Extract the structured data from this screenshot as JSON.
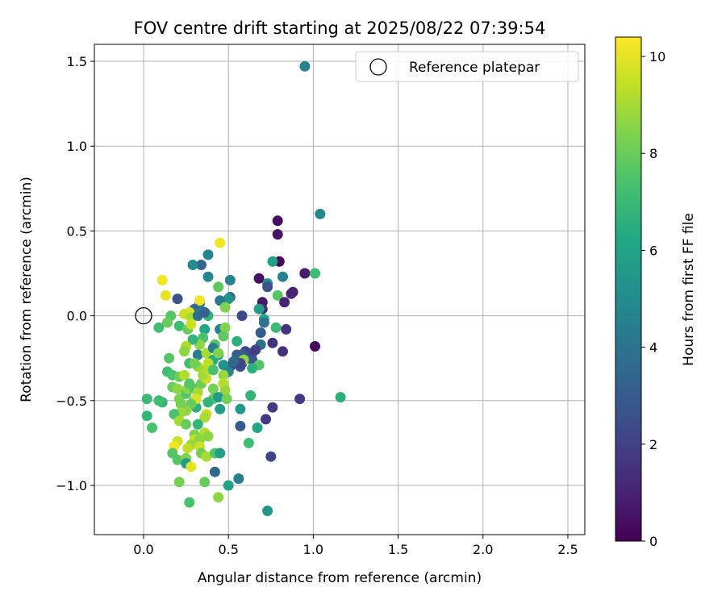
{
  "chart_data": {
    "type": "scatter",
    "title": "FOV centre drift starting at 2025/08/22 07:39:54",
    "xlabel": "Angular distance from reference (arcmin)",
    "ylabel": "Rotation from reference (arcmin)",
    "xlim": [
      -0.29,
      2.6
    ],
    "ylim": [
      -1.29,
      1.6
    ],
    "xticks": [
      0.0,
      0.5,
      1.0,
      1.5,
      2.0,
      2.5
    ],
    "xtick_labels": [
      "0.0",
      "0.5",
      "1.0",
      "1.5",
      "2.0",
      "2.5"
    ],
    "yticks": [
      -1.0,
      -0.5,
      0.0,
      0.5,
      1.0,
      1.5
    ],
    "ytick_labels": [
      "−1.0",
      "−0.5",
      "0.0",
      "0.5",
      "1.0",
      "1.5"
    ],
    "grid": true,
    "legend": {
      "position": "top-right",
      "entries": [
        "Reference platepar"
      ]
    },
    "reference_point": {
      "x": 0.0,
      "y": 0.0
    },
    "colorbar": {
      "label": "Hours from first FF file",
      "colormap": "viridis",
      "range": [
        0,
        10.4
      ],
      "ticks": [
        0,
        2,
        4,
        6,
        8,
        10
      ],
      "tick_labels": [
        "0",
        "2",
        "4",
        "6",
        "8",
        "10"
      ]
    },
    "points": [
      [
        0.95,
        1.47,
        4.6
      ],
      [
        1.04,
        0.6,
        4.8
      ],
      [
        0.79,
        0.56,
        0.4
      ],
      [
        0.79,
        0.48,
        0.5
      ],
      [
        0.8,
        0.32,
        0.2
      ],
      [
        0.76,
        0.32,
        6.0
      ],
      [
        0.95,
        0.25,
        0.4
      ],
      [
        0.95,
        0.25,
        0.8
      ],
      [
        0.88,
        0.14,
        0.9
      ],
      [
        0.87,
        0.13,
        1.0
      ],
      [
        1.01,
        0.25,
        7.0
      ],
      [
        0.82,
        0.23,
        4.6
      ],
      [
        0.68,
        0.22,
        0.4
      ],
      [
        0.73,
        0.19,
        5.0
      ],
      [
        0.73,
        0.17,
        2.6
      ],
      [
        0.79,
        0.12,
        7.6
      ],
      [
        0.7,
        0.08,
        0.7
      ],
      [
        0.83,
        0.08,
        1.0
      ],
      [
        0.7,
        0.04,
        1.4
      ],
      [
        0.68,
        0.04,
        5.8
      ],
      [
        0.58,
        0.0,
        2.4
      ],
      [
        0.71,
        -0.02,
        6.2
      ],
      [
        0.71,
        -0.04,
        4.0
      ],
      [
        0.78,
        -0.07,
        7.0
      ],
      [
        0.84,
        -0.08,
        1.6
      ],
      [
        0.69,
        -0.1,
        3.0
      ],
      [
        0.76,
        -0.16,
        1.6
      ],
      [
        1.01,
        -0.18,
        0.2
      ],
      [
        0.82,
        -0.21,
        1.4
      ],
      [
        0.69,
        -0.17,
        4.0
      ],
      [
        0.66,
        -0.2,
        2.0
      ],
      [
        0.64,
        -0.22,
        1.9
      ],
      [
        0.6,
        -0.21,
        2.2
      ],
      [
        0.58,
        -0.23,
        3.0
      ],
      [
        0.64,
        -0.26,
        2.8
      ],
      [
        0.58,
        -0.28,
        2.4
      ],
      [
        0.57,
        -0.3,
        2.6
      ],
      [
        0.53,
        -0.28,
        2.0
      ],
      [
        0.55,
        -0.23,
        3.1
      ],
      [
        0.51,
        -0.3,
        2.6
      ],
      [
        0.68,
        -0.29,
        7.6
      ],
      [
        0.64,
        -0.31,
        6.6
      ],
      [
        0.59,
        -0.26,
        8.6
      ],
      [
        0.57,
        -0.28,
        2.2
      ],
      [
        0.92,
        -0.49,
        1.8
      ],
      [
        1.16,
        -0.48,
        6.6
      ],
      [
        0.63,
        -0.47,
        6.8
      ],
      [
        0.76,
        -0.54,
        1.8
      ],
      [
        0.72,
        -0.61,
        1.8
      ],
      [
        0.67,
        -0.66,
        6.2
      ],
      [
        0.57,
        -0.55,
        5.6
      ],
      [
        0.57,
        -0.65,
        3.0
      ],
      [
        0.62,
        -0.75,
        7.2
      ],
      [
        0.75,
        -0.83,
        2.2
      ],
      [
        0.56,
        -0.96,
        4.4
      ],
      [
        0.5,
        -1.0,
        6.0
      ],
      [
        0.73,
        -1.15,
        5.4
      ],
      [
        0.51,
        0.21,
        4.6
      ],
      [
        0.51,
        0.11,
        3.4
      ],
      [
        0.5,
        0.1,
        5.4
      ],
      [
        0.45,
        0.43,
        10.2
      ],
      [
        0.38,
        0.36,
        4.8
      ],
      [
        0.34,
        0.3,
        3.4
      ],
      [
        0.29,
        0.3,
        5.0
      ],
      [
        0.38,
        0.23,
        4.8
      ],
      [
        0.44,
        0.17,
        7.8
      ],
      [
        0.45,
        0.09,
        4.2
      ],
      [
        0.48,
        0.05,
        8.4
      ],
      [
        0.33,
        0.07,
        4.0
      ],
      [
        0.33,
        0.09,
        10.2
      ],
      [
        0.3,
        0.04,
        3.4
      ],
      [
        0.32,
        0.01,
        4.4
      ],
      [
        0.27,
        0.02,
        9.8
      ],
      [
        0.24,
        0.01,
        9.6
      ],
      [
        0.28,
        -0.01,
        9.0
      ],
      [
        0.38,
        0.0,
        6.8
      ],
      [
        0.2,
        0.1,
        2.6
      ],
      [
        0.11,
        0.21,
        10.2
      ],
      [
        0.13,
        0.12,
        10.0
      ],
      [
        0.16,
        0.0,
        7.6
      ],
      [
        0.14,
        -0.04,
        8.0
      ],
      [
        0.09,
        -0.07,
        7.2
      ],
      [
        0.21,
        -0.06,
        7.2
      ],
      [
        0.26,
        -0.08,
        8.0
      ],
      [
        0.28,
        -0.05,
        9.6
      ],
      [
        0.36,
        -0.08,
        6.2
      ],
      [
        0.45,
        -0.08,
        4.4
      ],
      [
        0.48,
        -0.07,
        8.4
      ],
      [
        0.47,
        -0.12,
        7.8
      ],
      [
        0.42,
        -0.17,
        7.6
      ],
      [
        0.35,
        -0.13,
        7.4
      ],
      [
        0.33,
        -0.17,
        8.6
      ],
      [
        0.29,
        -0.14,
        6.8
      ],
      [
        0.25,
        -0.18,
        9.2
      ],
      [
        0.24,
        -0.21,
        8.6
      ],
      [
        0.27,
        -0.28,
        7.2
      ],
      [
        0.32,
        -0.23,
        4.4
      ],
      [
        0.37,
        -0.22,
        9.0
      ],
      [
        0.41,
        -0.19,
        4.4
      ],
      [
        0.44,
        -0.23,
        5.0
      ],
      [
        0.41,
        -0.26,
        6.4
      ],
      [
        0.47,
        -0.29,
        5.4
      ],
      [
        0.5,
        -0.33,
        4.6
      ],
      [
        0.53,
        -0.27,
        3.4
      ],
      [
        0.55,
        -0.15,
        6.6
      ],
      [
        0.15,
        -0.25,
        7.6
      ],
      [
        0.14,
        -0.33,
        7.2
      ],
      [
        0.17,
        -0.35,
        7.4
      ],
      [
        0.21,
        -0.36,
        8.0
      ],
      [
        0.24,
        -0.35,
        9.2
      ],
      [
        0.17,
        -0.42,
        8.0
      ],
      [
        0.2,
        -0.43,
        8.6
      ],
      [
        0.21,
        -0.49,
        8.4
      ],
      [
        0.25,
        -0.46,
        7.6
      ],
      [
        0.26,
        -0.43,
        8.6
      ],
      [
        0.27,
        -0.4,
        7.6
      ],
      [
        0.3,
        -0.43,
        7.6
      ],
      [
        0.32,
        -0.45,
        9.0
      ],
      [
        0.34,
        -0.4,
        8.2
      ],
      [
        0.37,
        -0.37,
        9.6
      ],
      [
        0.35,
        -0.35,
        9.0
      ],
      [
        0.37,
        -0.32,
        9.2
      ],
      [
        0.38,
        -0.28,
        9.4
      ],
      [
        0.32,
        -0.3,
        8.8
      ],
      [
        0.3,
        -0.28,
        8.2
      ],
      [
        0.47,
        -0.35,
        8.8
      ],
      [
        0.47,
        -0.4,
        9.2
      ],
      [
        0.48,
        -0.44,
        8.8
      ],
      [
        0.41,
        -0.43,
        8.2
      ],
      [
        0.41,
        -0.49,
        7.8
      ],
      [
        0.38,
        -0.51,
        6.8
      ],
      [
        0.44,
        -0.48,
        5.6
      ],
      [
        0.45,
        -0.55,
        5.8
      ],
      [
        0.49,
        -0.49,
        8.2
      ],
      [
        0.37,
        -0.58,
        9.6
      ],
      [
        0.36,
        -0.6,
        9.0
      ],
      [
        0.31,
        -0.54,
        6.6
      ],
      [
        0.3,
        -0.5,
        7.2
      ],
      [
        0.31,
        -0.49,
        9.8
      ],
      [
        0.28,
        -0.52,
        8.0
      ],
      [
        0.25,
        -0.56,
        8.6
      ],
      [
        0.22,
        -0.52,
        8.2
      ],
      [
        0.22,
        -0.57,
        8.8
      ],
      [
        0.18,
        -0.58,
        7.4
      ],
      [
        0.21,
        -0.62,
        9.0
      ],
      [
        0.25,
        -0.64,
        8.0
      ],
      [
        0.32,
        -0.64,
        6.8
      ],
      [
        0.3,
        -0.7,
        8.4
      ],
      [
        0.36,
        -0.69,
        9.2
      ],
      [
        0.38,
        -0.71,
        8.6
      ],
      [
        0.3,
        -0.73,
        9.4
      ],
      [
        0.33,
        -0.73,
        8.6
      ],
      [
        0.28,
        -0.76,
        8.8
      ],
      [
        0.33,
        -0.77,
        9.6
      ],
      [
        0.26,
        -0.78,
        9.4
      ],
      [
        0.2,
        -0.74,
        9.6
      ],
      [
        0.18,
        -0.77,
        10.2
      ],
      [
        0.17,
        -0.81,
        7.6
      ],
      [
        0.2,
        -0.85,
        7.6
      ],
      [
        0.25,
        -0.84,
        8.4
      ],
      [
        0.25,
        -0.87,
        5.6
      ],
      [
        0.28,
        -0.89,
        10.0
      ],
      [
        0.34,
        -0.81,
        8.2
      ],
      [
        0.37,
        -0.83,
        9.0
      ],
      [
        0.42,
        -0.81,
        7.6
      ],
      [
        0.45,
        -0.81,
        5.8
      ],
      [
        0.42,
        -0.92,
        3.4
      ],
      [
        0.36,
        -0.98,
        8.0
      ],
      [
        0.21,
        -0.98,
        8.2
      ],
      [
        0.27,
        -1.1,
        7.4
      ],
      [
        0.44,
        -1.07,
        8.6
      ],
      [
        0.02,
        -0.49,
        7.0
      ],
      [
        0.02,
        -0.59,
        6.8
      ],
      [
        0.05,
        -0.66,
        7.4
      ],
      [
        0.11,
        -0.51,
        6.8
      ],
      [
        0.09,
        -0.5,
        7.2
      ],
      [
        0.32,
        0.0,
        3.8
      ],
      [
        0.36,
        0.02,
        3.2
      ],
      [
        0.44,
        -0.22,
        8.4
      ],
      [
        0.41,
        -0.32,
        7.4
      ]
    ]
  }
}
